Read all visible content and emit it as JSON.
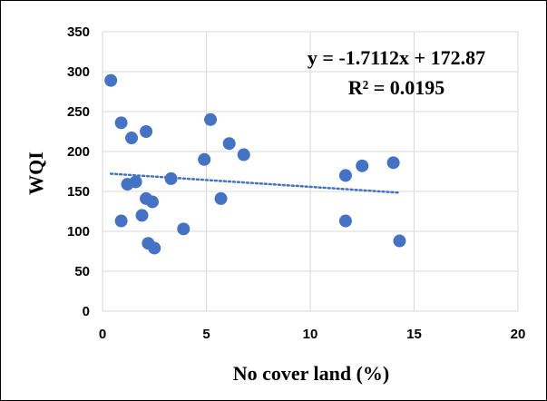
{
  "chart_data": {
    "type": "scatter",
    "xlabel": "No cover land (%)",
    "ylabel": "WQI",
    "xlim": [
      0,
      20
    ],
    "ylim": [
      0,
      350
    ],
    "x_ticks": [
      0,
      5,
      10,
      15,
      20
    ],
    "y_ticks": [
      0,
      50,
      100,
      150,
      200,
      250,
      300,
      350
    ],
    "grid": true,
    "point_color": "#4472c4",
    "trendline_color": "#4472c4",
    "points": [
      {
        "x": 0.4,
        "y": 289
      },
      {
        "x": 0.9,
        "y": 236
      },
      {
        "x": 1.4,
        "y": 217
      },
      {
        "x": 2.1,
        "y": 225
      },
      {
        "x": 5.2,
        "y": 240
      },
      {
        "x": 6.1,
        "y": 210
      },
      {
        "x": 6.8,
        "y": 196
      },
      {
        "x": 4.9,
        "y": 190
      },
      {
        "x": 3.3,
        "y": 166
      },
      {
        "x": 1.6,
        "y": 162
      },
      {
        "x": 1.2,
        "y": 159
      },
      {
        "x": 2.1,
        "y": 141
      },
      {
        "x": 2.4,
        "y": 137
      },
      {
        "x": 5.7,
        "y": 141
      },
      {
        "x": 1.9,
        "y": 120
      },
      {
        "x": 0.9,
        "y": 113
      },
      {
        "x": 3.9,
        "y": 103
      },
      {
        "x": 2.2,
        "y": 85
      },
      {
        "x": 2.5,
        "y": 79
      },
      {
        "x": 11.7,
        "y": 170
      },
      {
        "x": 12.5,
        "y": 182
      },
      {
        "x": 14.0,
        "y": 186
      },
      {
        "x": 11.7,
        "y": 113
      },
      {
        "x": 14.3,
        "y": 88
      }
    ],
    "trendline": {
      "slope": -1.7112,
      "intercept": 172.87,
      "x_range": [
        0.4,
        14.3
      ],
      "style": "dotted"
    },
    "annotations": {
      "equation": "y = -1.7112x + 172.87",
      "r_squared": "R² = 0.0195"
    }
  }
}
